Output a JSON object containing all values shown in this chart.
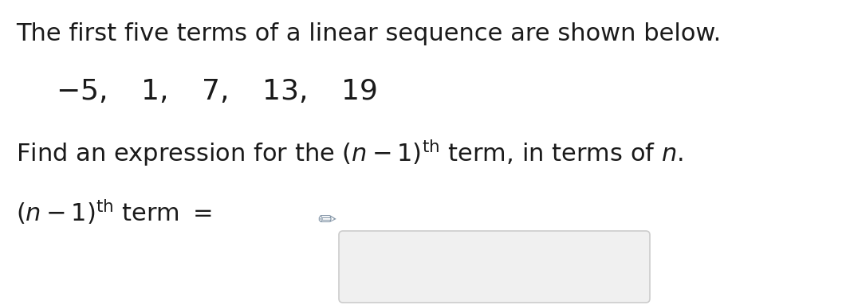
{
  "bg_color": "#ffffff",
  "line1": "The first five terms of a linear sequence are shown below.",
  "font_size_main": 22,
  "font_size_seq": 26,
  "text_color": "#1a1a1a",
  "box_color": "#f0f0f0",
  "box_edge_color": "#cccccc",
  "pencil_color": "#8899aa"
}
